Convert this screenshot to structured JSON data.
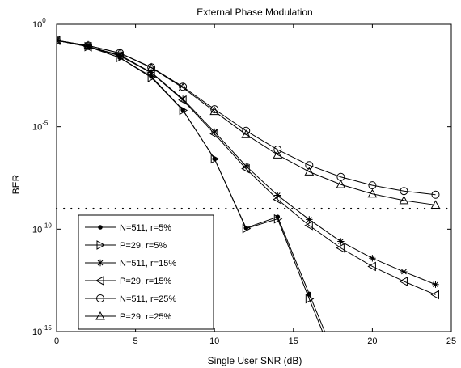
{
  "chart_data": {
    "type": "line",
    "title": "External Phase Modulation",
    "xlabel": "Single User SNR  (dB)",
    "ylabel": "BER",
    "xlim": [
      0,
      25
    ],
    "ylim_exp": [
      -15,
      0
    ],
    "yscale": "log",
    "x_ticks": [
      "0",
      "5",
      "10",
      "15",
      "20",
      "25"
    ],
    "y_ticks": [
      {
        "base": "10",
        "exp": "0"
      },
      {
        "base": "10",
        "exp": "-5"
      },
      {
        "base": "10",
        "exp": "-10"
      },
      {
        "base": "10",
        "exp": "-15"
      }
    ],
    "grid": false,
    "legend_position": "bottom-left",
    "reference_line": {
      "style": "dotted",
      "y_exp": -9
    },
    "series": [
      {
        "name": "N=511,  r=5%",
        "marker": "dot",
        "x": [
          0,
          2,
          4,
          6,
          8,
          10,
          12,
          14,
          16,
          18
        ],
        "y_exp": [
          -0.79,
          -1.09,
          -1.63,
          -2.55,
          -4.18,
          -6.57,
          -9.94,
          -9.4,
          -13.16,
          -16.9
        ]
      },
      {
        "name": "P=29,  r=5%",
        "marker": "triangle-right",
        "x": [
          0,
          2,
          4,
          6,
          8,
          10,
          12,
          14,
          16,
          18
        ],
        "y_exp": [
          -0.79,
          -1.09,
          -1.63,
          -2.6,
          -4.2,
          -6.57,
          -9.97,
          -9.5,
          -13.4,
          -17.2
        ]
      },
      {
        "name": "N=511,  r=15%",
        "marker": "star",
        "x": [
          0,
          2,
          4,
          6,
          8,
          10,
          12,
          14,
          16,
          18,
          20,
          22,
          24
        ],
        "y_exp": [
          -0.79,
          -1.09,
          -1.5,
          -2.35,
          -3.65,
          -5.25,
          -6.92,
          -8.35,
          -9.53,
          -10.6,
          -11.42,
          -12.08,
          -12.7
        ]
      },
      {
        "name": "P=29,  r=15%",
        "marker": "triangle-left",
        "x": [
          0,
          2,
          4,
          6,
          8,
          10,
          12,
          14,
          16,
          18,
          20,
          22,
          24
        ],
        "y_exp": [
          -0.79,
          -1.1,
          -1.54,
          -2.37,
          -3.7,
          -5.35,
          -7.05,
          -8.55,
          -9.82,
          -10.92,
          -11.82,
          -12.55,
          -13.2
        ]
      },
      {
        "name": "N=511,  r=25%",
        "marker": "circle",
        "x": [
          0,
          2,
          4,
          6,
          8,
          10,
          12,
          14,
          16,
          18,
          20,
          22,
          24
        ],
        "y_exp": [
          -0.79,
          -1.04,
          -1.4,
          -2.1,
          -3.05,
          -4.15,
          -5.2,
          -6.12,
          -6.88,
          -7.45,
          -7.86,
          -8.14,
          -8.32
        ]
      },
      {
        "name": "P=29,  r=25%",
        "marker": "triangle-up",
        "x": [
          0,
          2,
          4,
          6,
          8,
          10,
          12,
          14,
          16,
          18,
          20,
          22,
          24
        ],
        "y_exp": [
          -0.79,
          -1.04,
          -1.41,
          -2.12,
          -3.1,
          -4.25,
          -5.38,
          -6.37,
          -7.2,
          -7.82,
          -8.28,
          -8.6,
          -8.82
        ]
      }
    ]
  }
}
